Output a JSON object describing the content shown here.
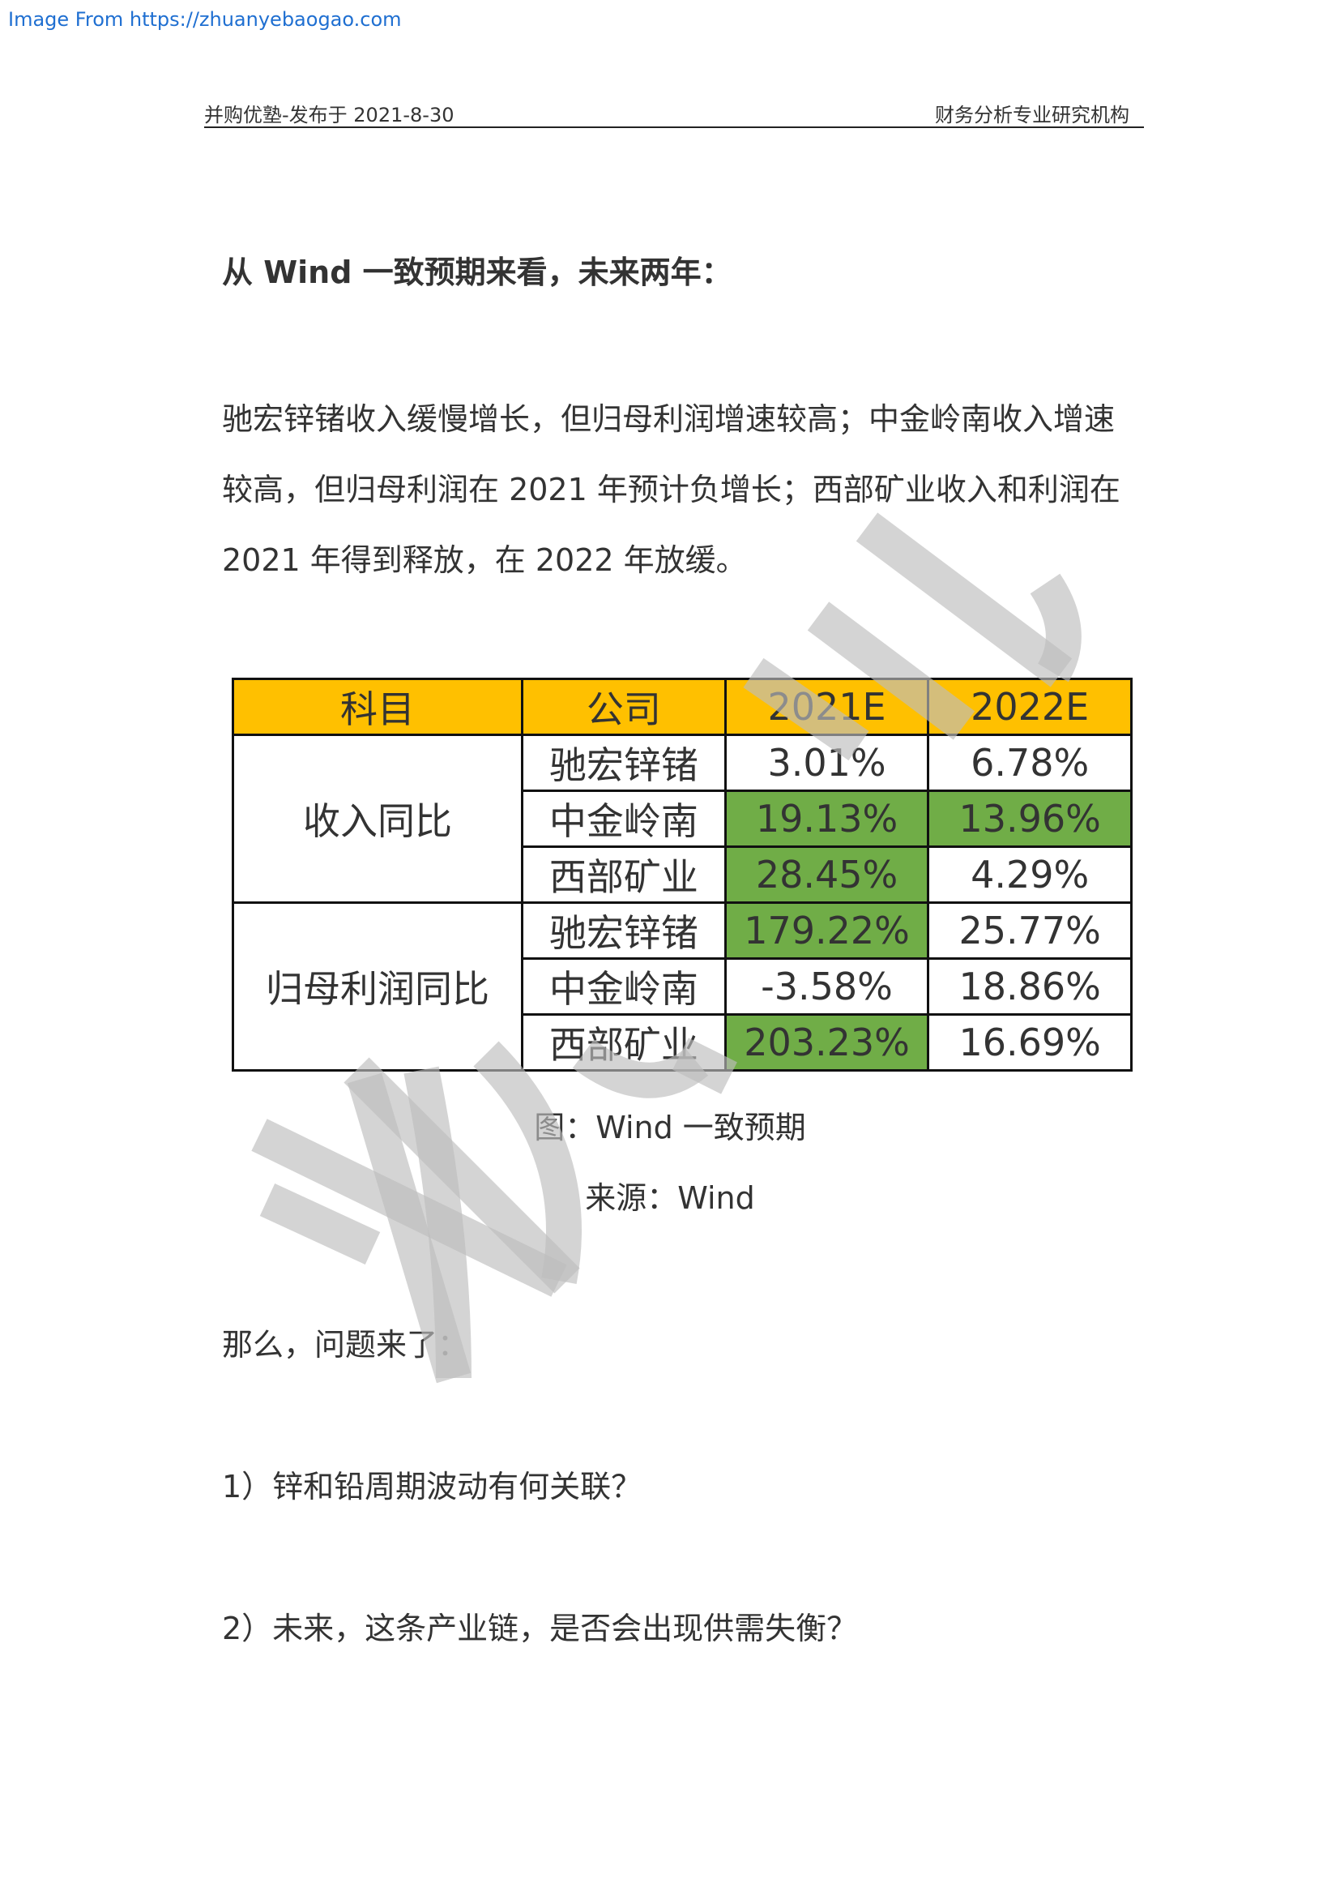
{
  "source_link": "Image From https://zhuanyebaogao.com",
  "header": {
    "left": "并购优塾-发布于 2021-8-30",
    "right": "财务分析专业研究机构"
  },
  "heading": "从 Wind 一致预期来看，未来两年：",
  "paragraph": "驰宏锌锗收入缓慢增长，但归母利润增速较高；中金岭南收入增速较高，但归母利润在 2021 年预计负增长；西部矿业收入和利润在 2021 年得到释放，在 2022 年放缓。",
  "table": {
    "headers": [
      "科目",
      "公司",
      "2021E",
      "2022E"
    ],
    "groups": [
      {
        "label": "收入同比",
        "rows": [
          {
            "company": "驰宏锌锗",
            "y2021": "3.01%",
            "y2022": "6.78%"
          },
          {
            "company": "中金岭南",
            "y2021": "19.13%",
            "y2022": "13.96%"
          },
          {
            "company": "西部矿业",
            "y2021": "28.45%",
            "y2022": "4.29%"
          }
        ]
      },
      {
        "label": "归母利润同比",
        "rows": [
          {
            "company": "驰宏锌锗",
            "y2021": "179.22%",
            "y2022": "25.77%"
          },
          {
            "company": "中金岭南",
            "y2021": "-3.58%",
            "y2022": "18.86%"
          },
          {
            "company": "西部矿业",
            "y2021": "203.23%",
            "y2022": "16.69%"
          }
        ]
      }
    ],
    "colors": {
      "header": "#ffc000",
      "highlight": "#70ad47"
    }
  },
  "caption": "图：Wind 一致预期",
  "source": "来源：Wind",
  "intro_line": "那么，问题来了：",
  "questions": [
    "1）锌和铅周期波动有何关联？",
    "2）未来，这条产业链，是否会出现供需失衡？"
  ]
}
